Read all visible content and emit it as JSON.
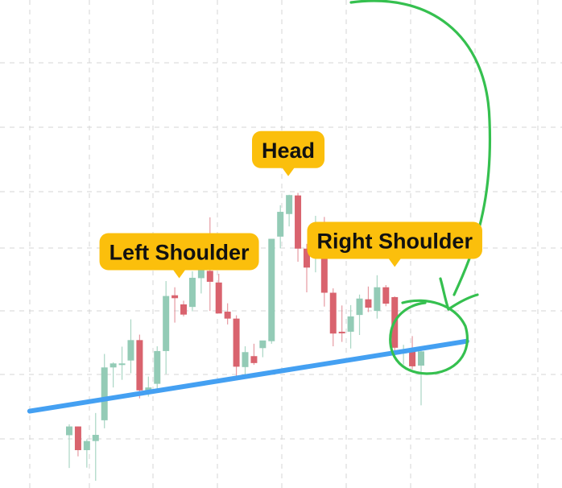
{
  "chart_data": {
    "type": "candlestick",
    "pattern": "head-and-shoulders",
    "y_range": [
      0,
      100
    ],
    "grid": true,
    "colors": {
      "up": "#93cbb6",
      "down": "#d9636e",
      "wick_up": "#a9d6c4",
      "wick_down": "#e69aa2",
      "neckline": "#44a0f2",
      "annotation_pen": "#35c04f",
      "callout_fill": "#fbbf0c",
      "grid": "#d6d6d6"
    },
    "candles": [
      {
        "o": 12.5,
        "h": 15.5,
        "l": 3.5,
        "c": 14.9
      },
      {
        "o": 14.9,
        "h": 14.9,
        "l": 6.7,
        "c": 8.4
      },
      {
        "o": 8.4,
        "h": 11.4,
        "l": 3.6,
        "c": 10.9
      },
      {
        "o": 10.9,
        "h": 18.6,
        "l": 0.0,
        "c": 12.6
      },
      {
        "o": 16.6,
        "h": 34.8,
        "l": 14.4,
        "c": 31.1
      },
      {
        "o": 31.1,
        "h": 32.5,
        "l": 25.6,
        "c": 32.2
      },
      {
        "o": 32.2,
        "h": 36.8,
        "l": 27.7,
        "c": 32.2
      },
      {
        "o": 33.0,
        "h": 44.3,
        "l": 29.5,
        "c": 38.6
      },
      {
        "o": 38.6,
        "h": 40.1,
        "l": 22.6,
        "c": 24.8
      },
      {
        "o": 24.8,
        "h": 28.6,
        "l": 23.1,
        "c": 25.6
      },
      {
        "o": 26.6,
        "h": 36.9,
        "l": 24.9,
        "c": 35.6
      },
      {
        "o": 35.6,
        "h": 54.8,
        "l": 29.3,
        "c": 50.7
      },
      {
        "o": 50.9,
        "h": 53.1,
        "l": 43.4,
        "c": 50.1
      },
      {
        "o": 48.4,
        "h": 49.4,
        "l": 45.1,
        "c": 45.6
      },
      {
        "o": 47.7,
        "h": 57.5,
        "l": 46.5,
        "c": 55.7
      },
      {
        "o": 55.6,
        "h": 59.2,
        "l": 51.4,
        "c": 58.6
      },
      {
        "o": 57.6,
        "h": 72.3,
        "l": 46.6,
        "c": 54.6
      },
      {
        "o": 54.4,
        "h": 56.8,
        "l": 46.4,
        "c": 45.9
      },
      {
        "o": 46.4,
        "h": 48.7,
        "l": 42.9,
        "c": 44.5
      },
      {
        "o": 44.5,
        "h": 45.4,
        "l": 28.4,
        "c": 31.3
      },
      {
        "o": 31.2,
        "h": 36.9,
        "l": 28.0,
        "c": 35.3
      },
      {
        "o": 34.2,
        "h": 37.6,
        "l": 31.8,
        "c": 32.3
      },
      {
        "o": 36.4,
        "h": 37.6,
        "l": 33.9,
        "c": 38.5
      },
      {
        "o": 38.3,
        "h": 65.8,
        "l": 37.6,
        "c": 66.4
      },
      {
        "o": 67.0,
        "h": 75.6,
        "l": 63.8,
        "c": 73.8
      },
      {
        "o": 73.2,
        "h": 78.5,
        "l": 69.8,
        "c": 78.4
      },
      {
        "o": 78.3,
        "h": 79.0,
        "l": 60.1,
        "c": 63.7
      },
      {
        "o": 63.7,
        "h": 65.0,
        "l": 51.7,
        "c": 58.5
      },
      {
        "o": 62.1,
        "h": 72.7,
        "l": 57.2,
        "c": 68.9
      },
      {
        "o": 68.7,
        "h": 72.4,
        "l": 47.8,
        "c": 51.6
      },
      {
        "o": 51.6,
        "h": 52.8,
        "l": 36.9,
        "c": 40.4
      },
      {
        "o": 40.9,
        "h": 48.1,
        "l": 38.1,
        "c": 40.7
      },
      {
        "o": 40.9,
        "h": 48.2,
        "l": 36.3,
        "c": 45.1
      },
      {
        "o": 45.5,
        "h": 51.1,
        "l": 40.0,
        "c": 50.0
      },
      {
        "o": 49.8,
        "h": 53.3,
        "l": 46.3,
        "c": 47.5
      },
      {
        "o": 46.6,
        "h": 56.4,
        "l": 44.5,
        "c": 53.1
      },
      {
        "o": 53.1,
        "h": 53.7,
        "l": 47.9,
        "c": 48.6
      },
      {
        "o": 50.4,
        "h": 50.6,
        "l": 35.7,
        "c": 36.5
      },
      {
        "o": 35.0,
        "h": 37.3,
        "l": 31.9,
        "c": 35.4
      },
      {
        "o": 35.4,
        "h": 39.7,
        "l": 30.6,
        "c": 31.4
      },
      {
        "o": 31.6,
        "h": 36.5,
        "l": 20.7,
        "c": 35.5
      }
    ],
    "neckline": {
      "from": {
        "index": -4.5,
        "y": 19.1
      },
      "to": {
        "index": 45.2,
        "y": 38.3
      }
    },
    "annotations": [
      {
        "name": "left-shoulder-callout",
        "text": "Left Shoulder",
        "anchor_index": 12.5,
        "anchor_y": 55.8
      },
      {
        "name": "head-callout",
        "text": "Head",
        "anchor_index": 24.9,
        "anchor_y": 83.8
      },
      {
        "name": "right-shoulder-callout",
        "text": "Right Shoulder",
        "anchor_index": 37.0,
        "anchor_y": 58.9
      }
    ]
  }
}
